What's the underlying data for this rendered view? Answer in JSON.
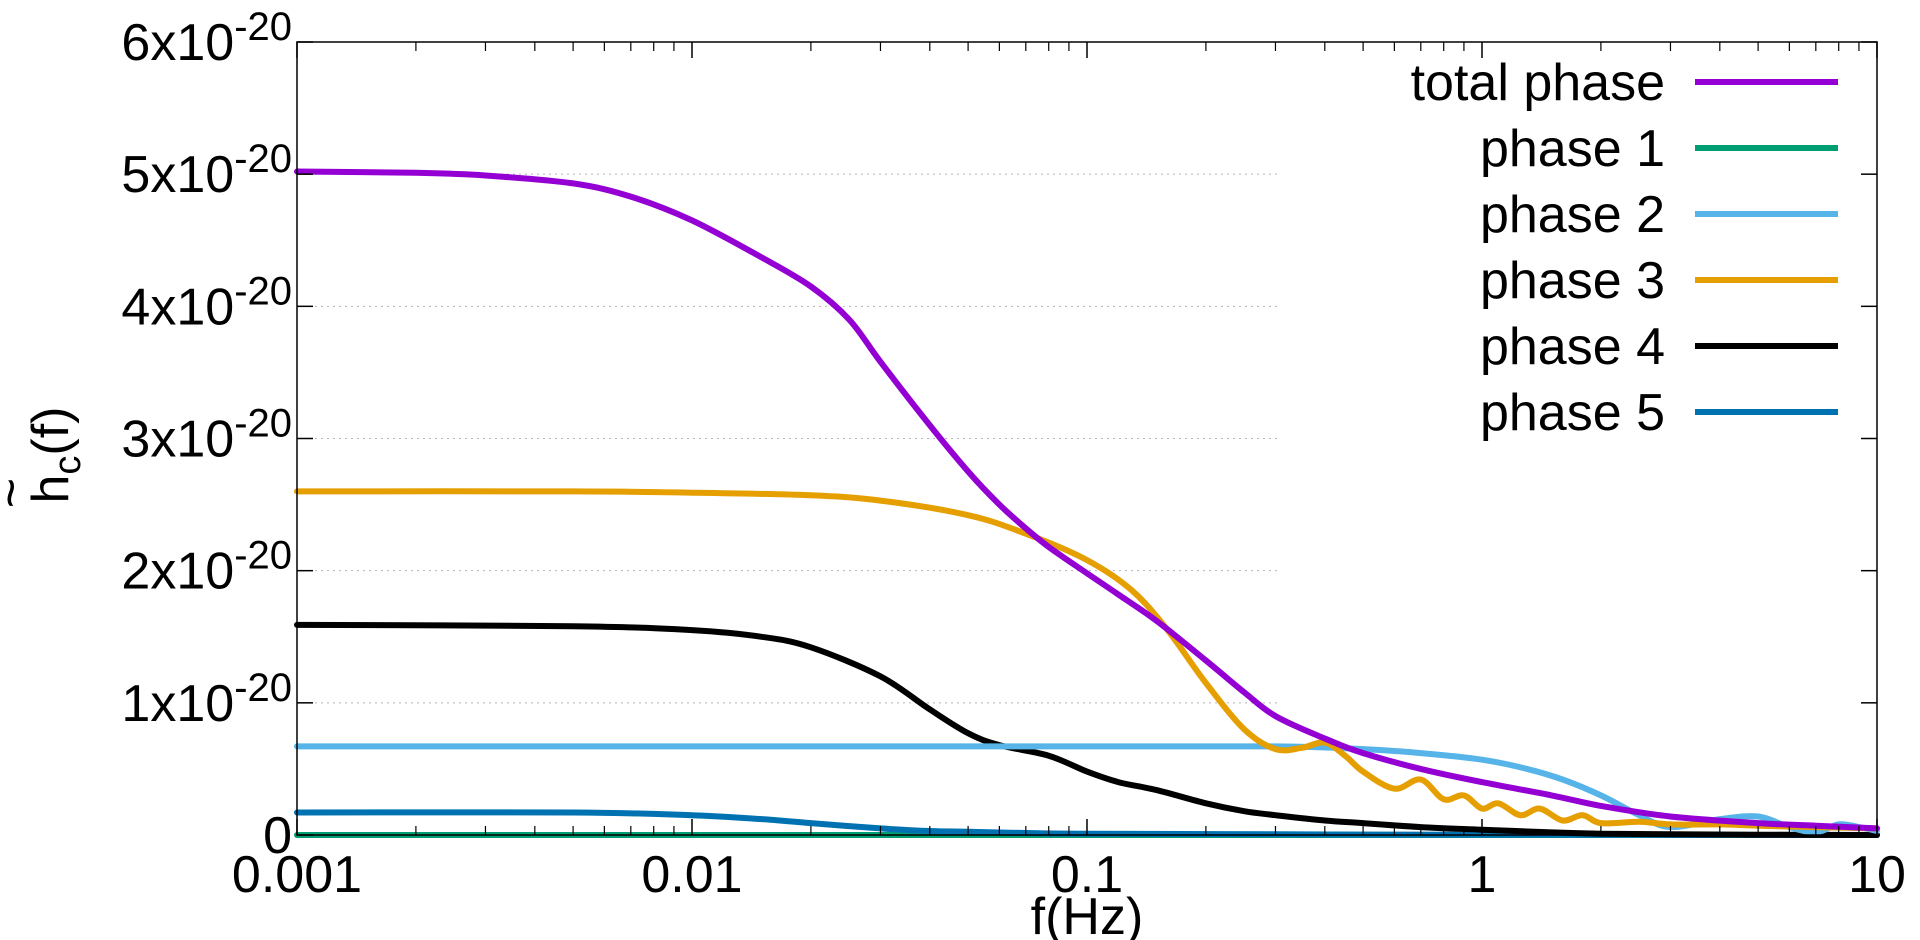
{
  "chart_data": {
    "type": "line",
    "xlabel": "f(Hz)",
    "ylabel_main": "h",
    "ylabel_tilde": "~",
    "ylabel_sub": "c",
    "ylabel_tail": "(f)",
    "xscale": "log",
    "xlim": [
      0.001,
      10
    ],
    "ylim": [
      0,
      6e-20
    ],
    "grid": "horizontal dotted (partial)",
    "legend_position": "top-right",
    "xticks": [
      {
        "value": 0.001,
        "label": "0.001"
      },
      {
        "value": 0.01,
        "label": "0.01"
      },
      {
        "value": 0.1,
        "label": "0.1"
      },
      {
        "value": 1,
        "label": "1"
      },
      {
        "value": 10,
        "label": "10"
      }
    ],
    "yticks": [
      {
        "value": 0,
        "label": "0",
        "base": "0",
        "exp": ""
      },
      {
        "value": 1e-20,
        "label": "1x10-20",
        "base": "1x10",
        "exp": "-20"
      },
      {
        "value": 2e-20,
        "label": "2x10-20",
        "base": "2x10",
        "exp": "-20"
      },
      {
        "value": 3e-20,
        "label": "3x10-20",
        "base": "3x10",
        "exp": "-20"
      },
      {
        "value": 4e-20,
        "label": "4x10-20",
        "base": "4x10",
        "exp": "-20"
      },
      {
        "value": 5e-20,
        "label": "5x10-20",
        "base": "5x10",
        "exp": "-20"
      },
      {
        "value": 6e-20,
        "label": "6x10-20",
        "base": "6x10",
        "exp": "-20"
      }
    ],
    "series": [
      {
        "name": "total phase",
        "color": "#9400d3",
        "x": [
          0.001,
          0.002,
          0.003,
          0.005,
          0.007,
          0.01,
          0.015,
          0.02,
          0.025,
          0.03,
          0.04,
          0.05,
          0.06,
          0.07,
          0.08,
          0.1,
          0.12,
          0.15,
          0.2,
          0.25,
          0.3,
          0.4,
          0.5,
          0.7,
          1,
          1.5,
          2,
          3,
          5,
          7,
          10
        ],
        "values": [
          5.02e-20,
          5.01e-20,
          4.99e-20,
          4.93e-20,
          4.83e-20,
          4.65e-20,
          4.37e-20,
          4.15e-20,
          3.9e-20,
          3.58e-20,
          3.1e-20,
          2.75e-20,
          2.5e-20,
          2.32e-20,
          2.18e-20,
          1.98e-20,
          1.82e-20,
          1.62e-20,
          1.32e-20,
          1.08e-20,
          9e-21,
          7.3e-21,
          6.2e-21,
          5e-21,
          4e-21,
          3e-21,
          2.2e-21,
          1.4e-21,
          9e-22,
          7e-22,
          5e-22
        ]
      },
      {
        "name": "phase 1",
        "color": "#009e73",
        "x": [
          0.001,
          10
        ],
        "values": [
          0.0,
          0.0
        ]
      },
      {
        "name": "phase 2",
        "color": "#56b4e9",
        "x": [
          0.001,
          0.01,
          0.1,
          0.3,
          0.5,
          0.7,
          1,
          1.3,
          1.6,
          2,
          2.5,
          3,
          4,
          5,
          6,
          7,
          8,
          9,
          10
        ],
        "values": [
          6.7e-21,
          6.7e-21,
          6.7e-21,
          6.7e-21,
          6.5e-21,
          6.2e-21,
          5.7e-21,
          5e-21,
          4.2e-21,
          3e-21,
          1.5e-21,
          6e-22,
          1.2e-21,
          1.4e-21,
          6e-22,
          2e-22,
          8e-22,
          6e-22,
          3e-22
        ]
      },
      {
        "name": "phase 3",
        "color": "#e69f00",
        "x": [
          0.001,
          0.005,
          0.01,
          0.02,
          0.03,
          0.05,
          0.07,
          0.1,
          0.13,
          0.16,
          0.2,
          0.25,
          0.3,
          0.35,
          0.4,
          0.45,
          0.5,
          0.6,
          0.7,
          0.8,
          0.9,
          1,
          1.1,
          1.25,
          1.4,
          1.6,
          1.8,
          2,
          2.5,
          3,
          4,
          5,
          7,
          10
        ],
        "values": [
          2.6e-20,
          2.6e-20,
          2.59e-20,
          2.57e-20,
          2.53e-20,
          2.42e-20,
          2.28e-20,
          2.08e-20,
          1.85e-20,
          1.55e-20,
          1.15e-20,
          8e-21,
          6.5e-21,
          6.6e-21,
          7e-21,
          6e-21,
          4.8e-21,
          3.5e-21,
          4.2e-21,
          2.7e-21,
          3e-21,
          2e-21,
          2.4e-21,
          1.5e-21,
          2e-21,
          1.1e-21,
          1.5e-21,
          9e-22,
          1e-21,
          8e-22,
          8e-22,
          7e-22,
          6e-22,
          5e-22
        ]
      },
      {
        "name": "phase 4",
        "color": "#000000",
        "x": [
          0.001,
          0.005,
          0.01,
          0.015,
          0.02,
          0.03,
          0.04,
          0.05,
          0.06,
          0.08,
          0.1,
          0.12,
          0.15,
          0.2,
          0.25,
          0.3,
          0.4,
          0.5,
          0.7,
          1,
          1.5,
          2,
          3,
          5,
          10
        ],
        "values": [
          1.59e-20,
          1.58e-20,
          1.55e-20,
          1.5e-20,
          1.42e-20,
          1.2e-20,
          9.5e-21,
          7.7e-21,
          6.8e-21,
          6e-21,
          4.8e-21,
          4e-21,
          3.4e-21,
          2.4e-21,
          1.8e-21,
          1.5e-21,
          1.1e-21,
          9e-22,
          6e-22,
          4e-22,
          2e-22,
          1e-22,
          5e-23,
          2e-23,
          0.0
        ]
      },
      {
        "name": "phase 5",
        "color": "#0072b2",
        "x": [
          0.001,
          0.005,
          0.01,
          0.015,
          0.02,
          0.03,
          0.04,
          0.05,
          0.07,
          0.1,
          0.3,
          1,
          10
        ],
        "values": [
          1.7e-21,
          1.7e-21,
          1.5e-21,
          1.2e-21,
          9e-22,
          5e-22,
          3e-22,
          2.5e-22,
          1.5e-22,
          1e-22,
          5e-23,
          2e-23,
          0.0
        ]
      }
    ]
  }
}
